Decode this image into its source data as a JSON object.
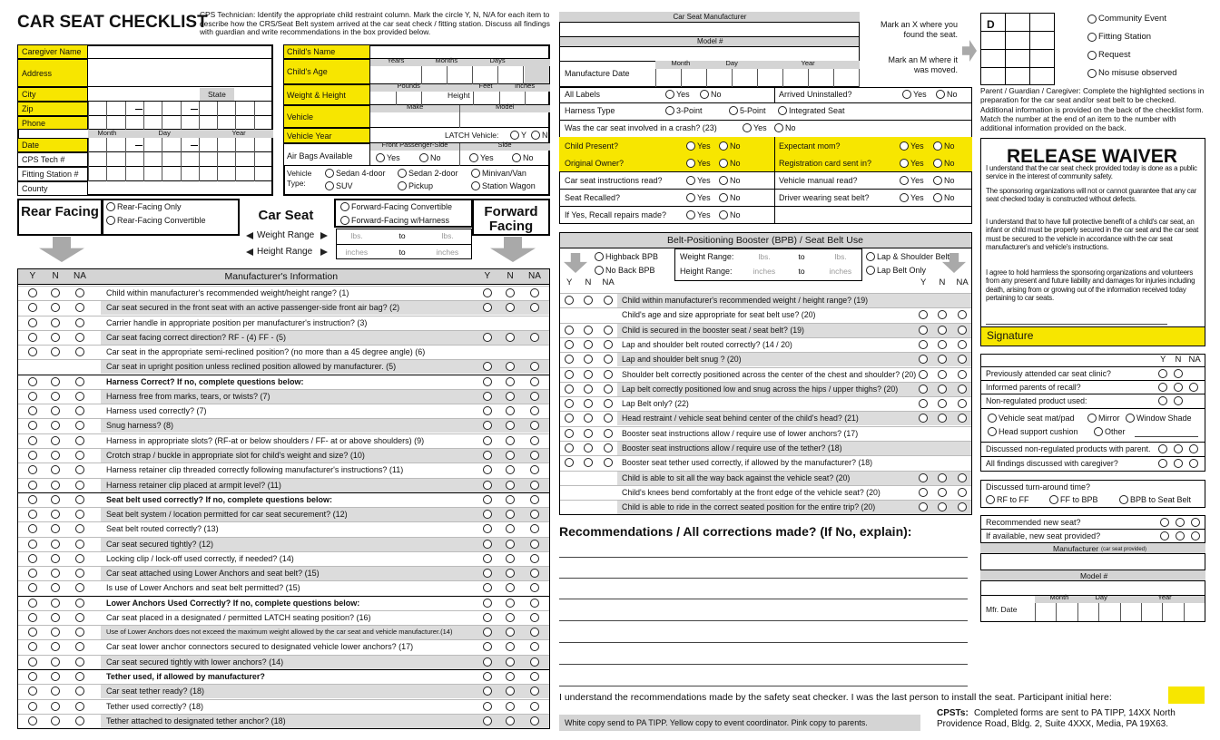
{
  "common": {
    "yes": "Yes",
    "no": "No",
    "y": "Y",
    "n": "N",
    "na": "NA",
    "lbs": "lbs.",
    "to": "to",
    "inches": "inches",
    "month": "Month",
    "day": "Day",
    "year": "Year"
  },
  "header": {
    "title": "CAR SEAT CHECKLIST",
    "instructions": "CPS Technician: Identify the appropriate child restraint column. Mark the circle Y, N, N/A for each item to describe how the CRS/Seat Belt system arrived at the car seat check / fitting station. Discuss all findings with guardian and write recommendations in the box provided below."
  },
  "caregiver": {
    "labels": [
      "Caregiver Name",
      "Address",
      "City",
      "Zip",
      "Phone",
      "Date",
      "CPS Tech #",
      "Fitting Station #",
      "County"
    ],
    "state": "State"
  },
  "child": {
    "labels": [
      "Child's Name",
      "Child's Age",
      "Weight & Height",
      "Vehicle",
      "Vehicle Year",
      "Air Bags Available"
    ],
    "years": "Years",
    "months": "Months",
    "days": "Days",
    "pounds": "Pounds",
    "height": "Height",
    "feet": "Feet",
    "inches": "Inches",
    "make": "Make",
    "model": "Model",
    "latch": "LATCH Vehicle:",
    "front": "Front Passenger-Side",
    "side": "Side",
    "vehicle_type": "Vehicle Type:",
    "vehicle_types": [
      "Sedan 4-door",
      "Sedan 2-door",
      "Minivan/Van",
      "SUV",
      "Pickup",
      "Station Wagon"
    ]
  },
  "seat_type": {
    "rear_facing": "Rear Facing",
    "rear_options": [
      "Rear-Facing Only",
      "Rear-Facing Convertible"
    ],
    "car_seat": "Car Seat",
    "weight_range": "Weight Range",
    "height_range": "Height Range",
    "forward_options": [
      "Forward-Facing Convertible",
      "Forward-Facing w/Harness"
    ],
    "forward_facing": "Forward Facing"
  },
  "checklist": {
    "heading": "Manufacturer's Information",
    "rows": [
      "Child within manufacturer's recommended weight/height range? (1)",
      "Car seat secured in the front seat with an active passenger-side front air bag? (2)",
      "Carrier handle in appropriate position per manufacturer's instruction? (3)",
      "Car seat facing correct direction? RF - (4) FF - (5)",
      "Car seat in the appropriate semi-reclined position? (no more than a 45 degree angle) (6)",
      "Car seat in upright position unless reclined position allowed by manufacturer. (5)",
      "Harness Correct? If no, complete questions below:",
      "Harness free from marks, tears, or twists? (7)",
      "Harness used correctly? (7)",
      "Snug harness? (8)",
      "Harness in appropriate slots? (RF-at or below shoulders / FF- at or above shoulders) (9)",
      "Crotch strap / buckle in appropriate slot for child's weight and size? (10)",
      "Harness retainer clip threaded correctly following manufacturer's instructions? (11)",
      "Harness retainer clip placed at armpit level? (11)",
      "Seat belt used correctly? If no, complete questions below:",
      "Seat belt system / location permitted for car seat securement? (12)",
      "Seat belt routed correctly? (13)",
      "Car seat secured tightly? (12)",
      "Locking clip / lock-off used correctly, if needed? (14)",
      "Car seat attached using Lower Anchors and seat belt? (15)",
      "Is use of Lower Anchors and seat belt permitted? (15)",
      "Lower Anchors Used Correctly? If no, complete questions below:",
      "Car seat placed in a designated / permitted LATCH seating position? (16)",
      "Use of Lower Anchors does not exceed the maximum weight allowed by the car seat and vehicle manufacturer.(14)",
      "Car seat lower anchor connectors secured to designated vehicle lower anchors? (17)",
      "Car seat secured tightly with lower anchors? (14)",
      "Tether used, if allowed by manufacturer?",
      "Car seat tether ready? (18)",
      "Tether used correctly? (18)",
      "Tether attached to designated tether anchor? (18)"
    ]
  },
  "seat_info": {
    "manufacturer": "Car Seat Manufacturer",
    "model": "Model #",
    "date": "Manufacture Date"
  },
  "marking": {
    "x_note": "Mark an X where you found the seat.",
    "m_note": "Mark an M where it was moved.",
    "grid_label": "D"
  },
  "location": [
    "Community Event",
    "Fitting Station",
    "Request",
    "No misuse observed"
  ],
  "parent_note": "Parent / Guardian / Caregiver: Complete the highlighted sections in preparation for the car seat and/or seat belt to be checked. Additional information is provided on the back of the checklist form. Match the number at the end of an item to the number with additional information provided on the back.",
  "questions": {
    "all_labels": "All Labels",
    "arrived": "Arrived Uninstalled?",
    "harness_type": "Harness Type",
    "harness_options": [
      "3-Point",
      "5-Point",
      "Integrated Seat"
    ],
    "crash": "Was the car seat involved in a crash? (23)",
    "pairs": [
      [
        "Child Present?",
        "Expectant mom?"
      ],
      [
        "Original Owner?",
        "Registration card sent in?"
      ],
      [
        "Car seat instructions read?",
        "Vehicle manual read?"
      ],
      [
        "Seat Recalled?",
        "Driver wearing seat belt?"
      ]
    ],
    "recall_repairs": "If Yes, Recall repairs made?"
  },
  "booster": {
    "title": "Belt-Positioning Booster (BPB) / Seat Belt Use",
    "types": [
      "Highback BPB",
      "No Back BPB"
    ],
    "weight_range": "Weight Range:",
    "height_range": "Height Range:",
    "belts": [
      "Lap & Shoulder Belt",
      "Lap Belt Only"
    ],
    "rows": [
      "Child within manufacturer's recommended weight / height range? (19)",
      "Child's age and size appropriate for seat belt use? (20)",
      "Child is secured in the booster seat / seat belt? (19)",
      "Lap and shoulder belt routed correctly? (14 / 20)",
      "Lap and shoulder belt snug ? (20)",
      "Shoulder belt correctly positioned across the center of the chest and shoulder? (20)",
      "Lap belt correctly positioned low and snug across the hips / upper thighs? (20)",
      "Lap Belt only? (22)",
      "Head restraint / vehicle seat behind center of the child's head? (21)",
      "Booster seat instructions allow / require use of lower anchors? (17)",
      "Booster seat instructions allow / require use of the tether? (18)",
      "Booster seat tether used correctly, if allowed by the manufacturer? (18)",
      "Child is able to sit all the way back against the vehicle seat? (20)",
      "Child's knees bend comfortably at the front edge of the vehicle seat? (20)",
      "Child is able to ride in the correct seated position for the entire trip? (20)"
    ]
  },
  "recommendations": {
    "title": "Recommendations / All corrections made? (If No, explain):",
    "acknowledgement": "I understand the recommendations made by the safety seat checker. I was the last person to install the seat. Participant initial here:",
    "copies": "White copy send to PA TIPP.  Yellow copy to event coordinator.  Pink copy to parents.",
    "cpsts_label": "CPSTs:",
    "cpsts_text": "Completed forms are sent to PA TIPP, 14XX North Providence Road, Bldg. 2, Suite 4XXX, Media, PA 19X63."
  },
  "waiver": {
    "title": "RELEASE WAIVER",
    "paragraphs": [
      "I understand that the car seat check provided today is done as a public service in the interest of community safety.",
      "The sponsoring organizations will not or cannot guarantee that any car seat checked today is constructed without defects.",
      "I understand that to have full protective benefit of a child's car seat, an infant or child must be properly secured in the car seat and the car seat must be secured to the vehicle in accordance with the car seat manufacturer's and vehicle's instructions.",
      "I agree to hold harmless the sponsoring organizations and volunteers from any present and future liability and damages for injuries including death, arising from or growing out of the information received today pertaining to car seats."
    ],
    "signature": "Signature"
  },
  "followup": {
    "items": [
      "Previously attended car seat clinic?",
      "Informed parents of recall?",
      "Non-regulated product used:"
    ],
    "products": [
      "Vehicle seat mat/pad",
      "Mirror",
      "Window Shade",
      "Head support cushion",
      "Other"
    ],
    "discussed": [
      "Discussed non-regulated products with parent.",
      "All findings discussed with caregiver?"
    ],
    "turnaround": "Discussed turn-around time?",
    "turnaround_options": [
      "RF to FF",
      "FF to BPB",
      "BPB to Seat Belt"
    ],
    "new_seat": [
      "Recommended new seat?",
      "If available, new seat provided?"
    ],
    "manufacturer": "Manufacturer",
    "manufacturer_note": "(car seat provided)",
    "model": "Model #",
    "date": "Mfr. Date"
  }
}
